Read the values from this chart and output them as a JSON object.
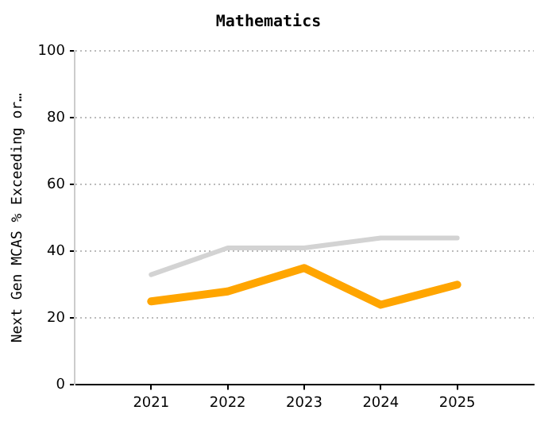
{
  "chart_data": {
    "type": "line",
    "title": "Mathematics",
    "ylabel": "Next Gen MCAS % Exceeding or…",
    "x": [
      2021,
      2022,
      2023,
      2024,
      2025
    ],
    "xlim": [
      2020,
      2026
    ],
    "xticks": [
      2021,
      2022,
      2023,
      2024,
      2025
    ],
    "ylim": [
      0,
      100
    ],
    "yticks": [
      0,
      20,
      40,
      60,
      80,
      100
    ],
    "grid": "y",
    "legend": false,
    "marker": "none",
    "line_style": "solid",
    "series": [
      {
        "color": "#d3d3d3",
        "values": [
          33,
          41,
          41,
          44,
          44
        ]
      },
      {
        "color": "#ffa500",
        "values": [
          25,
          28,
          35,
          24,
          30
        ]
      }
    ]
  }
}
